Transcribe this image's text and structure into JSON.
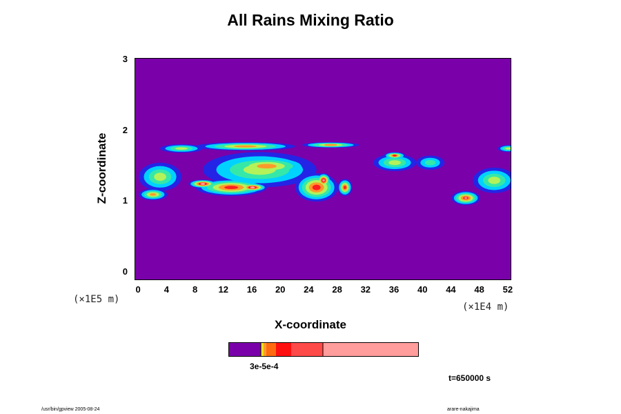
{
  "chart_data": {
    "type": "heatmap",
    "title": "All Rains Mixing Ratio",
    "xlabel": "X-coordinate",
    "ylabel": "Z-coordinate",
    "x_multiplier": "(×1E4 m)",
    "y_multiplier": "(×1E5 m)",
    "x_ticks": [
      "0",
      "4",
      "8",
      "12",
      "16",
      "20",
      "24",
      "28",
      "32",
      "36",
      "40",
      "44",
      "48",
      "52"
    ],
    "y_ticks": [
      "0",
      "1",
      "2",
      "3"
    ],
    "xlim": [
      -0.5,
      52.5
    ],
    "ylim": [
      -0.12,
      3.02
    ],
    "colorbar_labels": "3e-5e-4",
    "time_label": "t=650000 s",
    "footer_left": "/usr/bin/gpview 2005-08-24",
    "footer_right": "arare-nakajima",
    "colors": {
      "background": "#7a00aa",
      "blue": "#2424e6",
      "cyan": "#00d2ff",
      "green": "#36e8a8",
      "yellow_green": "#b4f25a",
      "orange": "#ff9a2a",
      "red": "#ff1e1e",
      "pink": "#ff9c9c"
    },
    "rain_regions": [
      {
        "x": 6,
        "z": 1.75,
        "rx": 3,
        "rz": 0.06,
        "level": 2
      },
      {
        "x": 15,
        "z": 1.78,
        "rx": 7,
        "rz": 0.06,
        "level": 3
      },
      {
        "x": 27,
        "z": 1.8,
        "rx": 4,
        "rz": 0.04,
        "level": 3
      },
      {
        "x": 17,
        "z": 1.45,
        "rx": 8,
        "rz": 0.25,
        "level": 2
      },
      {
        "x": 18,
        "z": 1.5,
        "rx": 6,
        "rz": 0.14,
        "level": 3
      },
      {
        "x": 3,
        "z": 1.35,
        "rx": 3,
        "rz": 0.2,
        "level": 2
      },
      {
        "x": 2,
        "z": 1.1,
        "rx": 2,
        "rz": 0.08,
        "level": 3
      },
      {
        "x": 13,
        "z": 1.2,
        "rx": 5,
        "rz": 0.12,
        "level": 4
      },
      {
        "x": 9,
        "z": 1.25,
        "rx": 2,
        "rz": 0.06,
        "level": 5
      },
      {
        "x": 16,
        "z": 1.2,
        "rx": 2,
        "rz": 0.06,
        "level": 5
      },
      {
        "x": 25,
        "z": 1.2,
        "rx": 3,
        "rz": 0.2,
        "level": 4
      },
      {
        "x": 26,
        "z": 1.3,
        "rx": 1,
        "rz": 0.1,
        "level": 5
      },
      {
        "x": 29,
        "z": 1.2,
        "rx": 1,
        "rz": 0.12,
        "level": 4
      },
      {
        "x": 36,
        "z": 1.55,
        "rx": 3,
        "rz": 0.12,
        "level": 2
      },
      {
        "x": 36,
        "z": 1.65,
        "rx": 1.5,
        "rz": 0.05,
        "level": 4
      },
      {
        "x": 41,
        "z": 1.55,
        "rx": 2,
        "rz": 0.1,
        "level": 1
      },
      {
        "x": 46,
        "z": 1.05,
        "rx": 2,
        "rz": 0.1,
        "level": 4
      },
      {
        "x": 46,
        "z": 1.05,
        "rx": 1,
        "rz": 0.05,
        "level": 5
      },
      {
        "x": 50,
        "z": 1.3,
        "rx": 3,
        "rz": 0.18,
        "level": 2
      },
      {
        "x": 52,
        "z": 1.75,
        "rx": 1.5,
        "rz": 0.05,
        "level": 2
      }
    ]
  }
}
